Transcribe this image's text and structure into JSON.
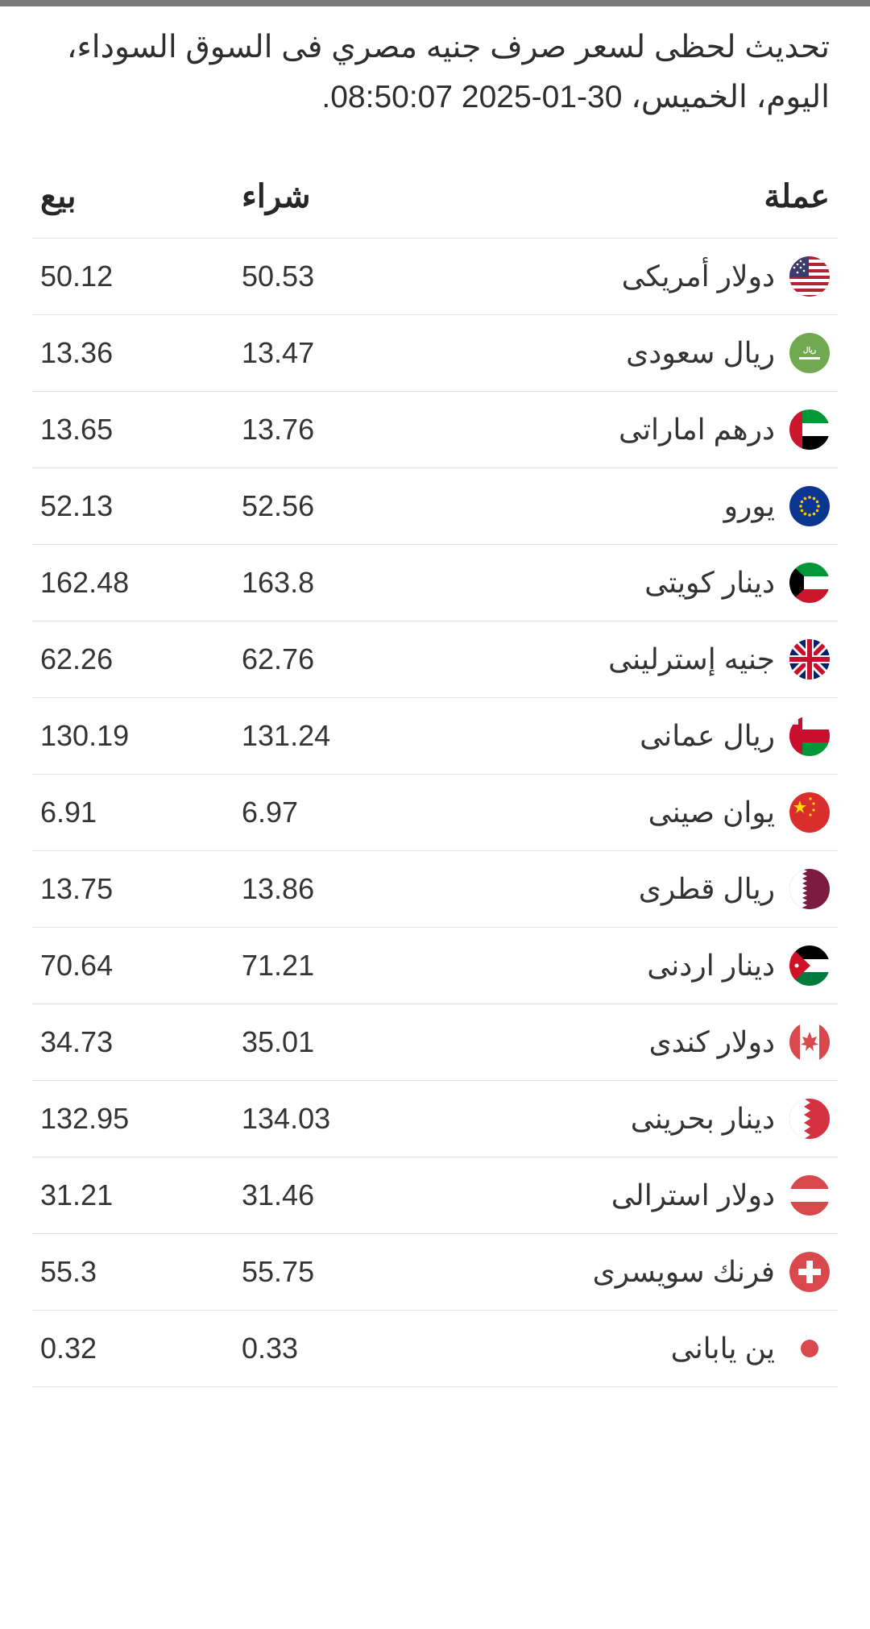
{
  "headline": "تحديث لحظى لسعر صرف جنيه مصري فى السوق السوداء، اليوم، الخميس، 30-01-2025 08:50:07.",
  "columns": {
    "currency": "عملة",
    "buy": "شراء",
    "sell": "بيع"
  },
  "text_color": "#343434",
  "border_color": "#e2e2e2",
  "background_color": "#ffffff",
  "header_font_size": 40,
  "cell_font_size": 36,
  "headline_font_size": 39,
  "rows": [
    {
      "name": "دولار أمريكى",
      "buy": "50.53",
      "sell": "50.12",
      "flag": "us"
    },
    {
      "name": "ريال سعودى",
      "buy": "13.47",
      "sell": "13.36",
      "flag": "sa"
    },
    {
      "name": "درهم اماراتى",
      "buy": "13.76",
      "sell": "13.65",
      "flag": "ae"
    },
    {
      "name": "يورو",
      "buy": "52.56",
      "sell": "52.13",
      "flag": "eu"
    },
    {
      "name": "دينار كويتى",
      "buy": "163.8",
      "sell": "162.48",
      "flag": "kw"
    },
    {
      "name": "جنيه إسترلينى",
      "buy": "62.76",
      "sell": "62.26",
      "flag": "gb"
    },
    {
      "name": "ريال عمانى",
      "buy": "131.24",
      "sell": "130.19",
      "flag": "om"
    },
    {
      "name": "يوان صينى",
      "buy": "6.97",
      "sell": "6.91",
      "flag": "cn"
    },
    {
      "name": "ريال قطرى",
      "buy": "13.86",
      "sell": "13.75",
      "flag": "qa"
    },
    {
      "name": "دينار اردنى",
      "buy": "71.21",
      "sell": "70.64",
      "flag": "jo"
    },
    {
      "name": "دولار كندى",
      "buy": "35.01",
      "sell": "34.73",
      "flag": "ca"
    },
    {
      "name": "دينار بحرينى",
      "buy": "134.03",
      "sell": "132.95",
      "flag": "bh"
    },
    {
      "name": "دولار استرالى",
      "buy": "31.46",
      "sell": "31.21",
      "flag": "at"
    },
    {
      "name": "فرنك سويسرى",
      "buy": "55.75",
      "sell": "55.3",
      "flag": "ch"
    },
    {
      "name": "ين يابانى",
      "buy": "0.33",
      "sell": "0.32",
      "flag": "jp"
    }
  ],
  "flag_colors": {
    "us": {
      "bg": "#b22234",
      "stripe": "#ffffff",
      "canton": "#3c3b6e"
    },
    "sa": {
      "bg": "#71a950",
      "text": "#ffffff"
    },
    "ae": {
      "red": "#cc162c",
      "green": "#009739",
      "white": "#ffffff",
      "black": "#000000"
    },
    "eu": {
      "bg": "#0b3690",
      "star": "#ffcc00"
    },
    "kw": {
      "green": "#009739",
      "white": "#ffffff",
      "red": "#cc162c",
      "black": "#000000"
    },
    "gb": {
      "bg": "#012169",
      "white": "#ffffff",
      "red": "#c8102e"
    },
    "om": {
      "red": "#c8102e",
      "white": "#ffffff",
      "green": "#009739"
    },
    "cn": {
      "bg": "#d82f2c",
      "star": "#ffde00"
    },
    "qa": {
      "white": "#ffffff",
      "maroon": "#7a1b3f"
    },
    "jo": {
      "black": "#000000",
      "white": "#ffffff",
      "green": "#007a3d",
      "red": "#ce1126"
    },
    "ca": {
      "red": "#d8484d",
      "white": "#ffffff"
    },
    "bh": {
      "white": "#ffffff",
      "red": "#d43241"
    },
    "at": {
      "red": "#d8484d",
      "white": "#ffffff"
    },
    "ch": {
      "bg": "#d8484d",
      "cross": "#ffffff"
    },
    "jp": {
      "bg": "#ffffff",
      "circle": "#d8484d"
    }
  }
}
